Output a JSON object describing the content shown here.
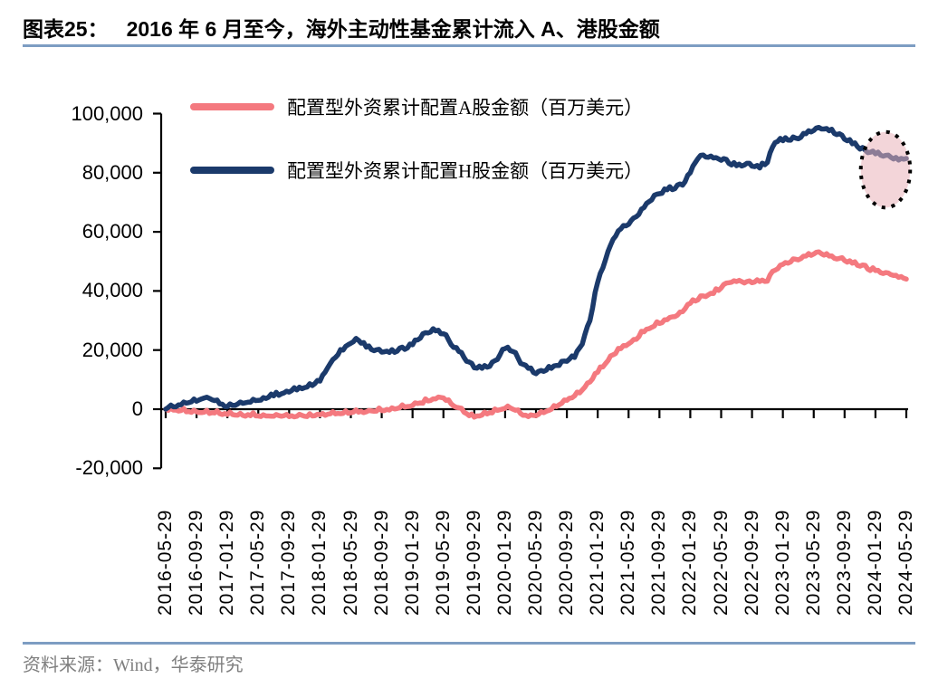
{
  "header": {
    "chart_label": "图表25：",
    "title": "2016 年 6 月至今，海外主动性基金累计流入 A、港股金额",
    "rule_color": "#7d9dc2"
  },
  "footer": {
    "source_text": "资料来源：Wind，华泰研究",
    "rule_color": "#7d9dc2",
    "text_color": "#7f7f7f"
  },
  "chart_data": {
    "type": "line",
    "title": "2016 年 6 月至今，海外主动性基金累计流入 A、港股金额",
    "unit": "百万美元",
    "grid": false,
    "legend_position": "top-left-inside",
    "axis_color": "#000000",
    "x_start": "2016-05-29",
    "x_interval": "monthly",
    "x_tick_labels": [
      "2016-05-29",
      "2016-09-29",
      "2017-01-29",
      "2017-05-29",
      "2017-09-29",
      "2018-01-29",
      "2018-05-29",
      "2018-09-29",
      "2019-01-29",
      "2019-05-29",
      "2019-09-29",
      "2020-01-29",
      "2020-05-29",
      "2020-09-29",
      "2021-01-29",
      "2021-05-29",
      "2021-09-29",
      "2022-01-29",
      "2022-05-29",
      "2022-09-29",
      "2023-01-29",
      "2023-05-29",
      "2023-09-29",
      "2024-01-29",
      "2024-05-29"
    ],
    "y_axis": {
      "min": -20000,
      "max": 100000,
      "tick_step": 20000,
      "tick_values": [
        100000,
        80000,
        60000,
        40000,
        20000,
        0,
        -20000
      ],
      "tick_labels": [
        "100,000",
        "80,000",
        "60,000",
        "40,000",
        "20,000",
        "0",
        "-20,000"
      ]
    },
    "series": [
      {
        "name": "配置型外资累计配置A股金额（百万美元）",
        "color": "#F4797F",
        "values": [
          0,
          -300,
          -500,
          -800,
          -900,
          -1000,
          -1200,
          -1500,
          -1800,
          -2000,
          -2100,
          -2200,
          -2300,
          -2300,
          -2400,
          -2400,
          -2500,
          -2400,
          -2400,
          -2300,
          -1900,
          -1700,
          -1600,
          -1400,
          -1200,
          -1000,
          -900,
          -700,
          -500,
          -300,
          200,
          700,
          1300,
          2100,
          2800,
          3500,
          3800,
          1800,
          500,
          -1500,
          -2700,
          -2000,
          -1200,
          -400,
          300,
          0,
          -1500,
          -2500,
          -2200,
          -1200,
          0,
          1500,
          3000,
          4500,
          6500,
          9200,
          12500,
          15400,
          18400,
          20500,
          22100,
          23600,
          26200,
          27700,
          29000,
          30300,
          31300,
          33000,
          35800,
          37000,
          38100,
          39100,
          41000,
          42800,
          43200,
          42700,
          42800,
          43200,
          43300,
          47000,
          49000,
          49800,
          50500,
          51800,
          52500,
          52600,
          51800,
          50800,
          50300,
          49400,
          48400,
          47400,
          46900,
          45900,
          45500,
          44600,
          44000
        ]
      },
      {
        "name": "配置型外资累计配置H股金额（百万美元）",
        "color": "#1B3A6B",
        "values": [
          0,
          800,
          1500,
          2200,
          2700,
          3800,
          3200,
          1800,
          900,
          1300,
          2000,
          2400,
          3000,
          3600,
          4500,
          5200,
          5800,
          6500,
          7300,
          8000,
          9500,
          14000,
          17500,
          20000,
          22300,
          23300,
          21000,
          19800,
          19300,
          19200,
          19600,
          20200,
          21800,
          24000,
          25800,
          26500,
          25500,
          21800,
          19500,
          16200,
          14000,
          13800,
          14500,
          16800,
          20500,
          19500,
          15500,
          13800,
          12000,
          12800,
          13800,
          14800,
          16200,
          17500,
          22000,
          30000,
          43000,
          50500,
          57500,
          61000,
          62500,
          65100,
          68200,
          70800,
          72900,
          74200,
          74600,
          75800,
          80000,
          84800,
          85300,
          85000,
          84200,
          83200,
          82400,
          82600,
          82200,
          81600,
          83500,
          90200,
          90800,
          91000,
          91500,
          93200,
          94300,
          94800,
          94200,
          92900,
          91300,
          89800,
          88000,
          86800,
          86400,
          85600,
          85200,
          84300,
          84800
        ]
      }
    ],
    "annotation": {
      "type": "ellipse-highlight",
      "x_center_month_index": 93.3,
      "y_center_value": 81000,
      "x_radius_months": 3.2,
      "y_radius_value": 12800,
      "fill": "#E9B3B9",
      "fill_opacity": 0.55,
      "stroke": "#000000",
      "stroke_style": "dotted"
    }
  }
}
